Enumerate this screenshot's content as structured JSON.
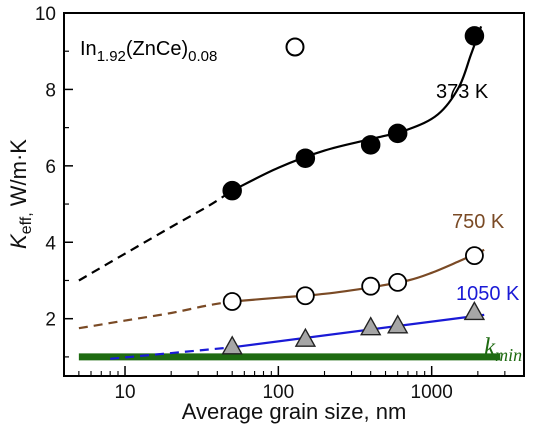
{
  "chart_data": {
    "type": "line",
    "title": "",
    "xlabel": "Average grain size, nm",
    "ylabel": {
      "main": "K",
      "sub": "eff,",
      "unit": " W/m·K"
    },
    "xscale": "log",
    "xlim": [
      4,
      4000
    ],
    "ylim": [
      0.5,
      10
    ],
    "x_ticks": [
      10,
      100,
      1000
    ],
    "y_ticks": [
      2,
      4,
      6,
      8,
      10
    ],
    "grid": false,
    "legend": "none",
    "formula": {
      "pre": "In",
      "sub1": "1.92",
      "mid": "(ZnCe)",
      "sub2": "0.08"
    },
    "series": [
      {
        "name": "373 K",
        "marker": "filled-circle",
        "color": "#000000",
        "label_color": "#000000",
        "x": [
          50,
          150,
          400,
          600,
          1900
        ],
        "y": [
          5.35,
          6.2,
          6.55,
          6.85,
          9.4
        ],
        "fit_solid": {
          "x": [
            50,
            100,
            200,
            400,
            700,
            1100,
            1500,
            1800,
            2100
          ],
          "y": [
            5.35,
            5.95,
            6.4,
            6.7,
            6.95,
            7.35,
            8.05,
            8.9,
            9.65
          ]
        },
        "fit_dashed": {
          "x": [
            5,
            10,
            20,
            35,
            50
          ],
          "y": [
            3.0,
            3.7,
            4.4,
            4.95,
            5.35
          ]
        }
      },
      {
        "name": "750 K",
        "marker": "open-circle",
        "color": "#7a4a25",
        "label_color": "#7a4a25",
        "x": [
          50,
          150,
          400,
          600,
          1900
        ],
        "y": [
          2.45,
          2.6,
          2.85,
          2.95,
          3.65
        ],
        "fit_solid": {
          "x": [
            50,
            100,
            200,
            400,
            700,
            1000,
            1500,
            2200
          ],
          "y": [
            2.45,
            2.55,
            2.65,
            2.82,
            3.0,
            3.2,
            3.5,
            3.8
          ]
        },
        "fit_dashed": {
          "x": [
            5,
            10,
            20,
            35,
            50
          ],
          "y": [
            1.75,
            1.95,
            2.15,
            2.35,
            2.45
          ]
        }
      },
      {
        "name": "1050 K",
        "marker": "triangle",
        "color": "#1a1ad6",
        "label_color": "#1a1ad6",
        "x": [
          50,
          150,
          400,
          600,
          1900
        ],
        "y": [
          1.25,
          1.45,
          1.75,
          1.8,
          2.15
        ],
        "fit_solid": {
          "x": [
            50,
            2200
          ],
          "y": [
            1.25,
            2.1
          ]
        },
        "fit_dashed": {
          "x": [
            8,
            50
          ],
          "y": [
            0.95,
            1.25
          ]
        }
      }
    ],
    "kmin": {
      "label_main": "k",
      "label_sub": "min",
      "y": 1.0,
      "x": [
        5,
        2800
      ],
      "color": "#1f6b12"
    }
  }
}
